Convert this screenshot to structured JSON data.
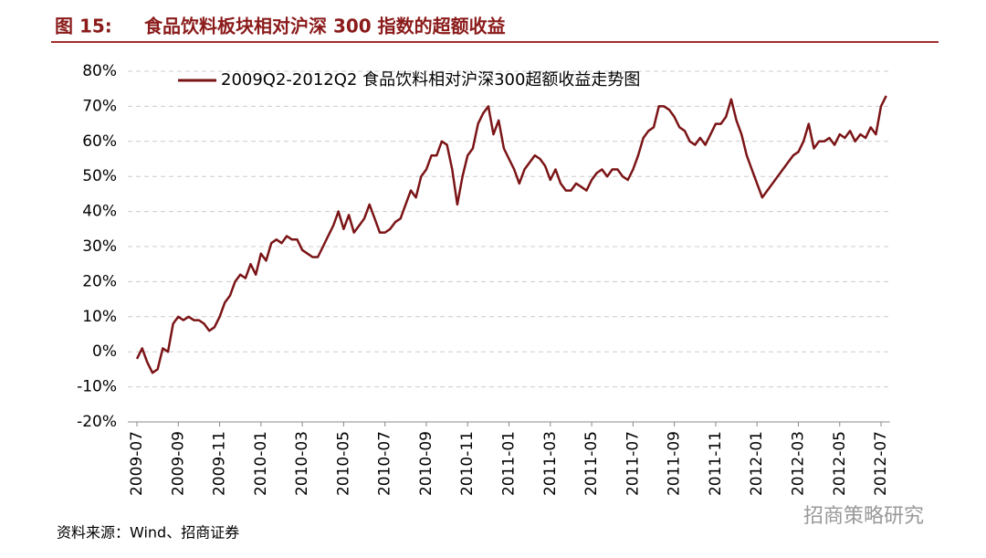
{
  "figure_label": "图 15:",
  "title": "食品饮料板块相对沪深 300 指数的超额收益",
  "source": "资料来源：Wind、招商证券",
  "watermark": "招商策略研究",
  "chart_data": {
    "type": "line",
    "categories": [
      "2009-07",
      null,
      null,
      null,
      null,
      null,
      null,
      null,
      "2009-09",
      null,
      null,
      null,
      null,
      null,
      null,
      null,
      "2009-11",
      null,
      null,
      null,
      null,
      null,
      null,
      null,
      "2010-01",
      null,
      null,
      null,
      null,
      null,
      null,
      null,
      "2010-03",
      null,
      null,
      null,
      null,
      null,
      null,
      null,
      "2010-05",
      null,
      null,
      null,
      null,
      null,
      null,
      null,
      "2010-07",
      null,
      null,
      null,
      null,
      null,
      null,
      null,
      "2010-09",
      null,
      null,
      null,
      null,
      null,
      null,
      null,
      "2010-11",
      null,
      null,
      null,
      null,
      null,
      null,
      null,
      "2011-01",
      null,
      null,
      null,
      null,
      null,
      null,
      null,
      "2011-03",
      null,
      null,
      null,
      null,
      null,
      null,
      null,
      "2011-05",
      null,
      null,
      null,
      null,
      null,
      null,
      null,
      "2011-07",
      null,
      null,
      null,
      null,
      null,
      null,
      null,
      "2011-09",
      null,
      null,
      null,
      null,
      null,
      null,
      null,
      "2011-11",
      null,
      null,
      null,
      null,
      null,
      null,
      null,
      "2012-01",
      null,
      null,
      null,
      null,
      null,
      null,
      null,
      "2012-03",
      null,
      null,
      null,
      null,
      null,
      null,
      null,
      "2012-05",
      null,
      null,
      null,
      null,
      null,
      null,
      null,
      "2012-07",
      null
    ],
    "series": [
      {
        "name": "2009Q2-2012Q2 食品饮料相对沪深300超额收益走势图",
        "color": "#7b1416",
        "values": [
          -2,
          1,
          -3,
          -6,
          -5,
          1,
          0,
          8,
          10,
          9,
          10,
          9,
          9,
          8,
          6,
          7,
          10,
          14,
          16,
          20,
          22,
          21,
          25,
          22,
          28,
          26,
          31,
          32,
          31,
          33,
          32,
          32,
          29,
          28,
          27,
          27,
          30,
          33,
          36,
          40,
          35,
          39,
          34,
          36,
          38,
          42,
          38,
          34,
          34,
          35,
          37,
          38,
          42,
          46,
          44,
          50,
          52,
          56,
          56,
          60,
          59,
          52,
          42,
          50,
          56,
          58,
          65,
          68,
          70,
          62,
          66,
          58,
          55,
          52,
          48,
          52,
          54,
          56,
          55,
          53,
          49,
          52,
          48,
          46,
          46,
          48,
          47,
          46,
          49,
          51,
          52,
          50,
          52,
          52,
          50,
          49,
          52,
          56,
          61,
          63,
          64,
          70,
          70,
          69,
          67,
          64,
          63,
          60,
          59,
          61,
          59,
          62,
          65,
          65,
          67,
          72,
          66,
          62,
          56,
          52,
          48,
          44,
          46,
          48,
          50,
          52,
          54,
          56,
          57,
          60,
          65,
          58,
          60,
          60,
          61,
          59,
          62,
          61,
          63,
          60,
          62,
          61,
          64,
          62,
          70,
          73
        ]
      }
    ],
    "ylim": [
      -20,
      80
    ],
    "yticks": [
      {
        "value": -20,
        "label": "-20%"
      },
      {
        "value": -10,
        "label": "-10%"
      },
      {
        "value": 0,
        "label": "0%"
      },
      {
        "value": 10,
        "label": "10%"
      },
      {
        "value": 20,
        "label": "20%"
      },
      {
        "value": 30,
        "label": "30%"
      },
      {
        "value": 40,
        "label": "40%"
      },
      {
        "value": 50,
        "label": "50%"
      },
      {
        "value": 60,
        "label": "60%"
      },
      {
        "value": 70,
        "label": "70%"
      },
      {
        "value": 80,
        "label": "80%"
      }
    ],
    "grid": true
  }
}
